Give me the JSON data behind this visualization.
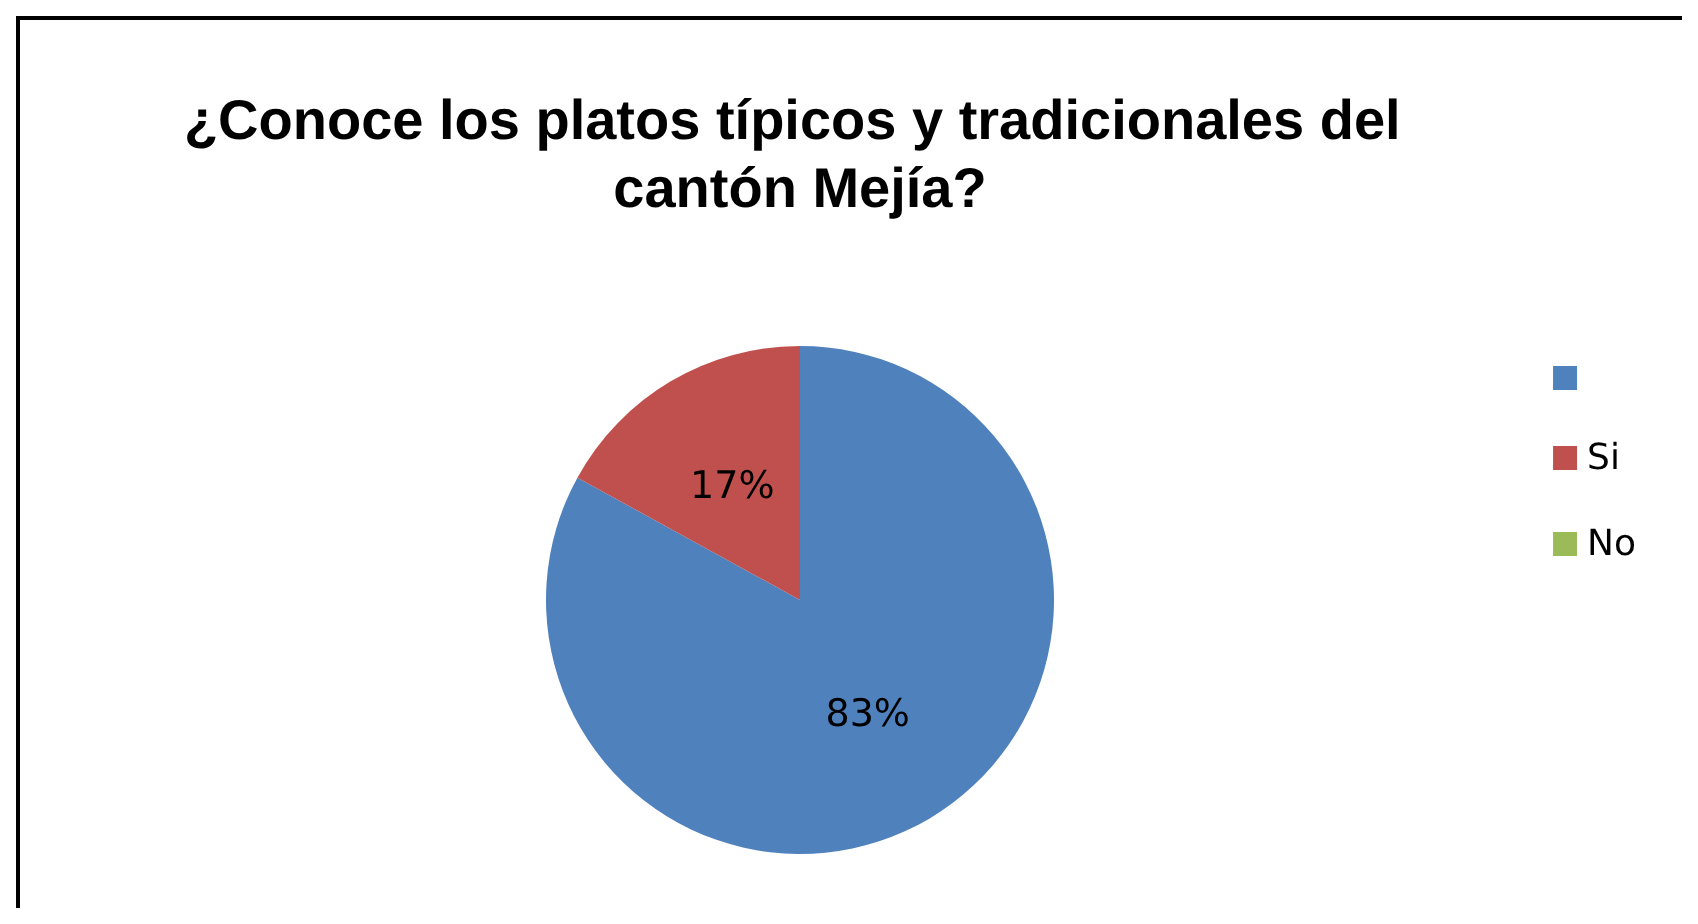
{
  "chart_data": {
    "type": "pie",
    "title": "¿Conoce los platos típicos y tradicionales del cantón Mejía?",
    "categories": [
      null,
      "Si",
      "No"
    ],
    "values": [
      83,
      17,
      0
    ],
    "colors": [
      "#4f81bd",
      "#c0504d",
      "#9bbb59"
    ],
    "value_labels": [
      "83%",
      "17%",
      null
    ],
    "legend": "right"
  }
}
